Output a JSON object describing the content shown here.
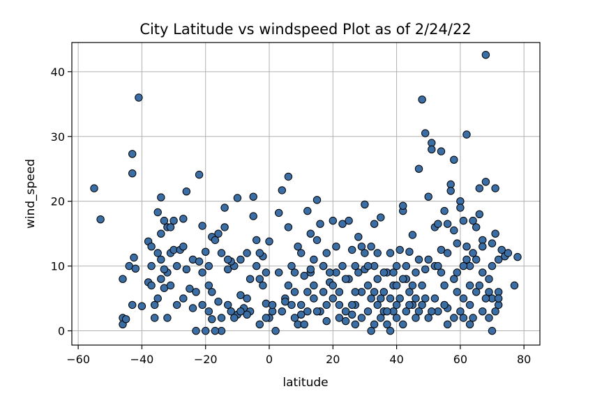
{
  "chart_data": {
    "type": "scatter",
    "title": "City Latitude vs windspeed Plot as of 2/24/22",
    "xlabel": "latitude",
    "ylabel": "wind_speed",
    "xlim": [
      -62,
      85
    ],
    "ylim": [
      -2.2,
      44.5
    ],
    "xticks": [
      -60,
      -40,
      -20,
      0,
      20,
      40,
      60,
      80
    ],
    "yticks": [
      0,
      10,
      20,
      30,
      40
    ],
    "grid": true,
    "marker_color": "#3a6ea5",
    "marker_edge": "#000000",
    "points": [
      [
        -55,
        22
      ],
      [
        -53,
        17.2
      ],
      [
        -46,
        2
      ],
      [
        -46,
        1
      ],
      [
        -46,
        8
      ],
      [
        -45,
        1.8
      ],
      [
        -44,
        10
      ],
      [
        -43,
        27.3
      ],
      [
        -43,
        24.3
      ],
      [
        -42.5,
        11.3
      ],
      [
        -43,
        4
      ],
      [
        -42,
        9.6
      ],
      [
        -41,
        36
      ],
      [
        -40,
        3.8
      ],
      [
        -38,
        13.8
      ],
      [
        -38,
        7.5
      ],
      [
        -37,
        13
      ],
      [
        -37,
        10
      ],
      [
        -36,
        2
      ],
      [
        -36,
        4
      ],
      [
        -35,
        18.3
      ],
      [
        -35,
        12
      ],
      [
        -34,
        15
      ],
      [
        -34,
        11
      ],
      [
        -34,
        8
      ],
      [
        -34,
        20.6
      ],
      [
        -33,
        17
      ],
      [
        -33,
        6.6
      ],
      [
        -32,
        9
      ],
      [
        -32,
        16
      ],
      [
        -32,
        2
      ],
      [
        -31,
        7
      ],
      [
        -31,
        12
      ],
      [
        -30,
        17
      ],
      [
        -30,
        12.5
      ],
      [
        -29,
        10
      ],
      [
        -28,
        12.5
      ],
      [
        -27,
        17.3
      ],
      [
        -27,
        5
      ],
      [
        -26,
        21.5
      ],
      [
        -25,
        6.5
      ],
      [
        -24,
        11
      ],
      [
        -24,
        3.5
      ],
      [
        -23,
        0
      ],
      [
        -22,
        24.1
      ],
      [
        -21,
        16.2
      ],
      [
        -21,
        9
      ],
      [
        -21,
        4
      ],
      [
        -20,
        12.2
      ],
      [
        -20,
        0
      ],
      [
        -19,
        10
      ],
      [
        -19,
        3
      ],
      [
        -18,
        14.5
      ],
      [
        -18,
        6
      ],
      [
        -17,
        14
      ],
      [
        -16,
        15
      ],
      [
        -16,
        4.5
      ],
      [
        -15,
        2
      ],
      [
        -15,
        0
      ],
      [
        -14,
        19
      ],
      [
        -14,
        16
      ],
      [
        -13,
        9.5
      ],
      [
        -13,
        4
      ],
      [
        -12,
        3
      ],
      [
        -11,
        10
      ],
      [
        -10,
        20.5
      ],
      [
        -10,
        2.5
      ],
      [
        -9,
        11
      ],
      [
        -8,
        3.5
      ],
      [
        -7,
        5
      ],
      [
        -6,
        3
      ],
      [
        -5,
        20.7
      ],
      [
        -5,
        17.7
      ],
      [
        -4,
        14
      ],
      [
        -4,
        10
      ],
      [
        -3,
        8
      ],
      [
        -3,
        1
      ],
      [
        -2,
        7
      ],
      [
        -2,
        11.5
      ],
      [
        -1,
        4.2
      ],
      [
        0,
        13.8
      ],
      [
        0,
        2
      ],
      [
        1,
        3
      ],
      [
        2,
        0
      ],
      [
        3,
        18.2
      ],
      [
        4,
        21.7
      ],
      [
        5,
        5
      ],
      [
        6,
        23.8
      ],
      [
        6,
        16
      ],
      [
        7,
        4
      ],
      [
        7,
        10
      ],
      [
        8,
        6
      ],
      [
        8,
        2
      ],
      [
        9,
        1
      ],
      [
        10,
        4
      ],
      [
        10,
        12
      ],
      [
        11,
        8.5
      ],
      [
        11,
        1
      ],
      [
        12,
        18.5
      ],
      [
        13,
        15
      ],
      [
        13,
        9
      ],
      [
        14,
        11
      ],
      [
        14,
        5
      ],
      [
        15,
        20.2
      ],
      [
        15,
        14
      ],
      [
        16,
        16.5
      ],
      [
        16,
        3
      ],
      [
        17,
        10
      ],
      [
        18,
        4
      ],
      [
        18,
        12
      ],
      [
        19,
        7.5
      ],
      [
        20,
        5
      ],
      [
        20,
        17
      ],
      [
        21,
        9
      ],
      [
        22,
        2
      ],
      [
        22,
        6
      ],
      [
        23,
        16.5
      ],
      [
        24,
        3
      ],
      [
        25,
        17
      ],
      [
        25,
        8
      ],
      [
        26,
        12.5
      ],
      [
        27,
        1
      ],
      [
        27,
        4
      ],
      [
        28,
        14.5
      ],
      [
        28,
        9
      ],
      [
        29,
        6
      ],
      [
        30,
        19.5
      ],
      [
        30,
        12
      ],
      [
        31,
        3
      ],
      [
        31,
        7
      ],
      [
        32,
        13
      ],
      [
        32,
        0
      ],
      [
        33,
        10
      ],
      [
        33,
        16.5
      ],
      [
        34,
        4
      ],
      [
        34,
        8
      ],
      [
        35,
        17.5
      ],
      [
        35,
        2
      ],
      [
        36,
        6
      ],
      [
        36,
        3
      ],
      [
        37,
        9
      ],
      [
        37,
        1
      ],
      [
        38,
        5
      ],
      [
        38,
        12
      ],
      [
        39,
        3
      ],
      [
        39,
        7
      ],
      [
        40,
        2
      ],
      [
        40,
        10
      ],
      [
        41,
        12.5
      ],
      [
        41,
        5
      ],
      [
        42,
        18.5
      ],
      [
        42,
        19.3
      ],
      [
        43,
        3
      ],
      [
        43,
        8
      ],
      [
        44,
        6
      ],
      [
        44,
        12.2
      ],
      [
        45,
        4
      ],
      [
        45,
        14.8
      ],
      [
        46,
        9
      ],
      [
        46,
        2
      ],
      [
        47,
        25
      ],
      [
        47,
        11
      ],
      [
        48,
        35.7
      ],
      [
        48,
        7
      ],
      [
        49,
        30.5
      ],
      [
        49,
        5
      ],
      [
        50,
        20.7
      ],
      [
        50,
        2
      ],
      [
        51,
        29
      ],
      [
        51,
        28
      ],
      [
        52,
        16
      ],
      [
        52,
        10
      ],
      [
        53,
        16.5
      ],
      [
        53,
        3
      ],
      [
        54,
        27.7
      ],
      [
        54,
        12.5
      ],
      [
        55,
        18.5
      ],
      [
        55,
        7
      ],
      [
        56,
        12
      ],
      [
        56,
        3.5
      ],
      [
        57,
        22.6
      ],
      [
        57,
        21.6
      ],
      [
        58,
        26.4
      ],
      [
        58,
        15.5
      ],
      [
        59,
        13.5
      ],
      [
        59,
        6
      ],
      [
        60,
        20
      ],
      [
        60,
        19
      ],
      [
        61,
        17
      ],
      [
        61,
        2
      ],
      [
        62,
        30.3
      ],
      [
        62,
        11
      ],
      [
        63,
        10
      ],
      [
        63,
        7
      ],
      [
        64,
        17
      ],
      [
        64,
        12
      ],
      [
        65,
        16
      ],
      [
        65,
        6
      ],
      [
        66,
        22
      ],
      [
        66,
        18
      ],
      [
        67,
        14
      ],
      [
        67,
        9
      ],
      [
        68,
        42.6
      ],
      [
        68,
        23
      ],
      [
        69,
        8
      ],
      [
        69,
        2
      ],
      [
        70,
        13.5
      ],
      [
        70,
        5
      ],
      [
        71,
        22
      ],
      [
        71,
        15
      ],
      [
        72,
        11
      ],
      [
        72,
        4
      ],
      [
        73,
        12.5
      ],
      [
        74,
        11.5
      ],
      [
        75,
        12
      ],
      [
        77,
        7
      ],
      [
        78,
        11.4
      ],
      [
        -33,
        9.5
      ],
      [
        -29,
        4
      ],
      [
        -26,
        9.5
      ],
      [
        -22,
        10.7
      ],
      [
        -18,
        1.8
      ],
      [
        -15,
        12
      ],
      [
        -12,
        10.7
      ],
      [
        -9,
        5.5
      ],
      [
        -7,
        12
      ],
      [
        -6,
        8
      ],
      [
        -1,
        9
      ],
      [
        3,
        9
      ],
      [
        5,
        4.5
      ],
      [
        9,
        13
      ],
      [
        12,
        3
      ],
      [
        14,
        7
      ],
      [
        17,
        6
      ],
      [
        19,
        9
      ],
      [
        21,
        13
      ],
      [
        23,
        10
      ],
      [
        24,
        1.5
      ],
      [
        26,
        4
      ],
      [
        27,
        10
      ],
      [
        29,
        2
      ],
      [
        30,
        9.5
      ],
      [
        32,
        5
      ],
      [
        33,
        1
      ],
      [
        36,
        9
      ],
      [
        38,
        0
      ],
      [
        40,
        7
      ],
      [
        42,
        1
      ],
      [
        43,
        10
      ],
      [
        45,
        7
      ],
      [
        47,
        3
      ],
      [
        49,
        9.5
      ],
      [
        50,
        11
      ],
      [
        52,
        5
      ],
      [
        53,
        10
      ],
      [
        55,
        4
      ],
      [
        56,
        16.5
      ],
      [
        58,
        2
      ],
      [
        59,
        9
      ],
      [
        61,
        5
      ],
      [
        62,
        13
      ],
      [
        63,
        4
      ],
      [
        64,
        2
      ],
      [
        66,
        7
      ],
      [
        67,
        13
      ],
      [
        69,
        6
      ],
      [
        70,
        0
      ],
      [
        71,
        3
      ],
      [
        72,
        6
      ],
      [
        -37,
        7
      ],
      [
        -35,
        5
      ],
      [
        -31,
        16
      ],
      [
        -27,
        13
      ],
      [
        -23,
        6
      ],
      [
        -19,
        7
      ],
      [
        -17,
        0
      ],
      [
        -13,
        11
      ],
      [
        -11,
        2
      ],
      [
        -9,
        3
      ],
      [
        -7,
        2.5
      ],
      [
        -3,
        12
      ],
      [
        -1,
        2
      ],
      [
        1,
        4
      ],
      [
        4,
        3
      ],
      [
        6,
        7
      ],
      [
        8,
        9
      ],
      [
        10,
        2.5
      ],
      [
        12,
        6
      ],
      [
        13,
        9.5
      ],
      [
        15,
        3
      ],
      [
        17,
        10
      ],
      [
        18,
        1.5
      ],
      [
        20,
        7
      ],
      [
        22,
        4
      ],
      [
        24,
        8
      ],
      [
        26,
        2.5
      ],
      [
        27,
        6
      ],
      [
        29,
        13
      ],
      [
        31,
        10
      ],
      [
        33,
        6
      ],
      [
        34,
        12
      ],
      [
        35,
        5
      ],
      [
        37,
        3
      ],
      [
        39,
        9
      ],
      [
        40,
        4
      ],
      [
        42,
        8
      ],
      [
        44,
        4
      ],
      [
        46,
        5
      ],
      [
        48,
        4
      ],
      [
        51,
        3
      ],
      [
        54,
        9
      ],
      [
        56,
        1
      ],
      [
        58,
        8
      ],
      [
        60,
        3
      ],
      [
        61,
        10
      ],
      [
        63,
        1
      ],
      [
        65,
        11
      ],
      [
        67,
        3
      ],
      [
        68,
        5
      ],
      [
        70,
        10
      ],
      [
        72,
        5
      ]
    ]
  }
}
